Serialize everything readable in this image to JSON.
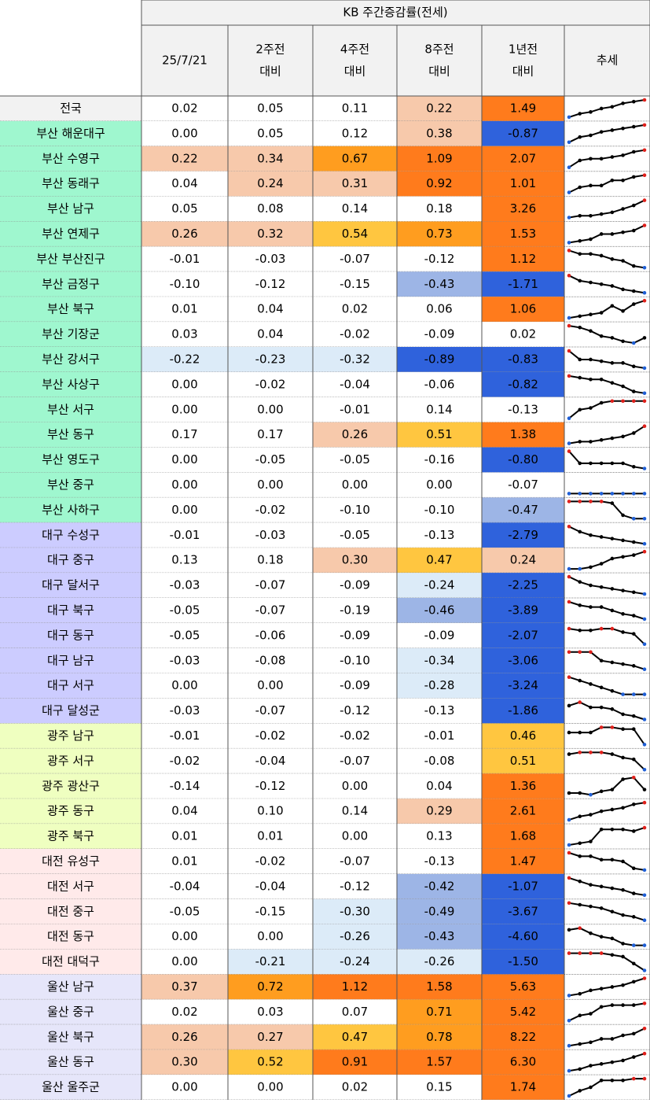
{
  "header": {
    "title": "KB 주간증감률(전세)",
    "columns": [
      [
        "25/7/21"
      ],
      [
        "2주전",
        "대비"
      ],
      [
        "4주전",
        "대비"
      ],
      [
        "8주전",
        "대비"
      ],
      [
        "1년전",
        "대비"
      ],
      [
        "추세"
      ]
    ]
  },
  "groups": [
    {
      "color": "#f2f2f2",
      "rows": [
        {
          "region": "전국",
          "values": [
            "0.02",
            "0.05",
            "0.11",
            "0.22",
            "1.49"
          ],
          "trend": [
            0,
            2,
            3,
            5,
            6,
            8,
            9,
            10
          ]
        }
      ]
    },
    {
      "color": "#9ff7cf",
      "rows": [
        {
          "region": "부산 해운대구",
          "values": [
            "0.00",
            "0.05",
            "0.12",
            "0.38",
            "-0.87"
          ],
          "trend": [
            0,
            3,
            4,
            6,
            7,
            8,
            9,
            10
          ]
        },
        {
          "region": "부산 수영구",
          "values": [
            "0.22",
            "0.34",
            "0.67",
            "1.09",
            "2.07"
          ],
          "trend": [
            0,
            4,
            5,
            5,
            6,
            7,
            9,
            10
          ]
        },
        {
          "region": "부산 동래구",
          "values": [
            "0.04",
            "0.24",
            "0.31",
            "0.92",
            "1.01"
          ],
          "trend": [
            0,
            3,
            4,
            4,
            7,
            7,
            9,
            10
          ]
        },
        {
          "region": "부산 남구",
          "values": [
            "0.05",
            "0.08",
            "0.14",
            "0.18",
            "3.26"
          ],
          "trend": [
            0,
            1,
            1,
            2,
            3,
            5,
            7,
            10
          ]
        },
        {
          "region": "부산 연제구",
          "values": [
            "0.26",
            "0.32",
            "0.54",
            "0.73",
            "1.53"
          ],
          "trend": [
            0,
            1,
            2,
            5,
            5,
            6,
            7,
            10
          ]
        },
        {
          "region": "부산 부산진구",
          "values": [
            "-0.01",
            "-0.03",
            "-0.07",
            "-0.12",
            "1.12"
          ],
          "trend": [
            10,
            8,
            8,
            7,
            5,
            4,
            1,
            0
          ]
        },
        {
          "region": "부산 금정구",
          "values": [
            "-0.10",
            "-0.12",
            "-0.15",
            "-0.43",
            "-1.71"
          ],
          "trend": [
            10,
            7,
            6,
            5,
            4,
            2,
            1,
            0
          ]
        },
        {
          "region": "부산 북구",
          "values": [
            "0.01",
            "0.04",
            "0.02",
            "0.06",
            "1.06"
          ],
          "trend": [
            0,
            1,
            2,
            3,
            7,
            4,
            8,
            10
          ]
        },
        {
          "region": "부산 기장군",
          "values": [
            "0.03",
            "0.04",
            "-0.02",
            "-0.09",
            "0.02"
          ],
          "trend": [
            10,
            9,
            7,
            4,
            3,
            1,
            0,
            3
          ]
        },
        {
          "region": "부산 강서구",
          "values": [
            "-0.22",
            "-0.23",
            "-0.32",
            "-0.89",
            "-0.83"
          ],
          "trend": [
            10,
            5,
            5,
            4,
            3,
            3,
            1,
            0
          ]
        },
        {
          "region": "부산 사상구",
          "values": [
            "0.00",
            "-0.02",
            "-0.04",
            "-0.06",
            "-0.82"
          ],
          "trend": [
            10,
            9,
            8,
            8,
            6,
            4,
            1,
            0
          ]
        },
        {
          "region": "부산 서구",
          "values": [
            "0.00",
            "0.00",
            "-0.01",
            "0.14",
            "-0.13"
          ],
          "trend": [
            0,
            5,
            6,
            9,
            10,
            10,
            10,
            10
          ]
        },
        {
          "region": "부산 동구",
          "values": [
            "0.17",
            "0.17",
            "0.26",
            "0.51",
            "1.38"
          ],
          "trend": [
            0,
            1,
            1,
            2,
            3,
            4,
            6,
            10
          ]
        },
        {
          "region": "부산 영도구",
          "values": [
            "0.00",
            "-0.05",
            "-0.05",
            "-0.16",
            "-0.80"
          ],
          "trend": [
            10,
            3,
            3,
            3,
            3,
            3,
            1,
            0
          ]
        },
        {
          "region": "부산 중구",
          "values": [
            "0.00",
            "0.00",
            "0.00",
            "0.00",
            "-0.07"
          ],
          "trend": [
            0,
            0,
            0,
            0,
            0,
            0,
            0,
            0
          ]
        },
        {
          "region": "부산 사하구",
          "values": [
            "0.00",
            "-0.02",
            "-0.10",
            "-0.10",
            "-0.47"
          ],
          "trend": [
            10,
            10,
            10,
            10,
            9,
            2,
            0,
            0
          ]
        }
      ]
    },
    {
      "color": "#ccccff",
      "rows": [
        {
          "region": "대구 수성구",
          "values": [
            "-0.01",
            "-0.03",
            "-0.05",
            "-0.13",
            "-2.79"
          ],
          "trend": [
            10,
            7,
            5,
            4,
            3,
            2,
            1,
            0
          ]
        },
        {
          "region": "대구 중구",
          "values": [
            "0.13",
            "0.18",
            "0.30",
            "0.47",
            "0.24"
          ],
          "trend": [
            0,
            0,
            1,
            3,
            6,
            7,
            8,
            10
          ]
        },
        {
          "region": "대구 달서구",
          "values": [
            "-0.03",
            "-0.07",
            "-0.09",
            "-0.24",
            "-2.25"
          ],
          "trend": [
            10,
            7,
            5,
            4,
            3,
            2,
            1,
            0
          ]
        },
        {
          "region": "대구 북구",
          "values": [
            "-0.05",
            "-0.07",
            "-0.19",
            "-0.46",
            "-3.89"
          ],
          "trend": [
            10,
            8,
            7,
            7,
            5,
            3,
            2,
            0
          ]
        },
        {
          "region": "대구 동구",
          "values": [
            "-0.05",
            "-0.06",
            "-0.09",
            "-0.09",
            "-2.07"
          ],
          "trend": [
            9,
            8,
            8,
            9,
            9,
            7,
            6,
            0
          ]
        },
        {
          "region": "대구 남구",
          "values": [
            "-0.03",
            "-0.08",
            "-0.10",
            "-0.34",
            "-3.06"
          ],
          "trend": [
            10,
            10,
            10,
            5,
            4,
            3,
            2,
            0
          ]
        },
        {
          "region": "대구 서구",
          "values": [
            "0.00",
            "0.00",
            "-0.09",
            "-0.28",
            "-3.24"
          ],
          "trend": [
            10,
            8,
            6,
            4,
            2,
            0,
            0,
            0
          ]
        },
        {
          "region": "대구 달성군",
          "values": [
            "-0.03",
            "-0.07",
            "-0.12",
            "-0.13",
            "-1.86"
          ],
          "trend": [
            8,
            10,
            7,
            7,
            6,
            3,
            2,
            0
          ]
        }
      ]
    },
    {
      "color": "#efffc0",
      "rows": [
        {
          "region": "광주 남구",
          "values": [
            "-0.01",
            "-0.02",
            "-0.02",
            "-0.01",
            "0.46"
          ],
          "trend": [
            7,
            7,
            7,
            10,
            10,
            9,
            9,
            0
          ]
        },
        {
          "region": "광주 서구",
          "values": [
            "-0.02",
            "-0.04",
            "-0.07",
            "-0.08",
            "0.51"
          ],
          "trend": [
            9,
            10,
            10,
            10,
            9,
            7,
            6,
            0
          ]
        },
        {
          "region": "광주 광산구",
          "values": [
            "-0.14",
            "-0.12",
            "0.00",
            "0.04",
            "1.36"
          ],
          "trend": [
            1,
            1,
            0,
            2,
            3,
            9,
            10,
            3
          ]
        },
        {
          "region": "광주 동구",
          "values": [
            "0.04",
            "0.10",
            "0.14",
            "0.29",
            "2.61"
          ],
          "trend": [
            0,
            2,
            3,
            5,
            6,
            7,
            9,
            10
          ]
        },
        {
          "region": "광주 북구",
          "values": [
            "0.01",
            "0.01",
            "0.00",
            "0.13",
            "1.68"
          ],
          "trend": [
            0,
            1,
            2,
            9,
            9,
            9,
            8,
            10
          ]
        }
      ]
    },
    {
      "color": "#ffeaea",
      "rows": [
        {
          "region": "대전 유성구",
          "values": [
            "0.01",
            "-0.02",
            "-0.07",
            "-0.13",
            "1.47"
          ],
          "trend": [
            10,
            8,
            8,
            6,
            6,
            5,
            1,
            0
          ]
        },
        {
          "region": "대전 서구",
          "values": [
            "-0.04",
            "-0.04",
            "-0.12",
            "-0.42",
            "-1.07"
          ],
          "trend": [
            10,
            8,
            6,
            5,
            4,
            3,
            1,
            0
          ]
        },
        {
          "region": "대전 중구",
          "values": [
            "-0.05",
            "-0.15",
            "-0.30",
            "-0.49",
            "-3.67"
          ],
          "trend": [
            10,
            9,
            8,
            7,
            5,
            3,
            2,
            0
          ]
        },
        {
          "region": "대전 동구",
          "values": [
            "0.00",
            "0.00",
            "-0.26",
            "-0.43",
            "-4.60"
          ],
          "trend": [
            9,
            10,
            7,
            5,
            4,
            1,
            0,
            0
          ]
        },
        {
          "region": "대전 대덕구",
          "values": [
            "0.00",
            "-0.21",
            "-0.24",
            "-0.26",
            "-1.50"
          ],
          "trend": [
            10,
            10,
            10,
            10,
            9,
            8,
            4,
            0
          ]
        }
      ]
    },
    {
      "color": "#e6e6fa",
      "rows": [
        {
          "region": "울산 남구",
          "values": [
            "0.37",
            "0.72",
            "1.12",
            "1.58",
            "5.63"
          ],
          "trend": [
            0,
            1,
            3,
            4,
            5,
            6,
            8,
            10
          ]
        },
        {
          "region": "울산 중구",
          "values": [
            "0.02",
            "0.03",
            "0.07",
            "0.71",
            "5.42"
          ],
          "trend": [
            0,
            3,
            4,
            8,
            9,
            9,
            9,
            10
          ]
        },
        {
          "region": "울산 북구",
          "values": [
            "0.26",
            "0.27",
            "0.47",
            "0.78",
            "8.22"
          ],
          "trend": [
            0,
            1,
            2,
            4,
            4,
            6,
            7,
            10
          ]
        },
        {
          "region": "울산 동구",
          "values": [
            "0.30",
            "0.52",
            "0.91",
            "1.57",
            "6.30"
          ],
          "trend": [
            0,
            1,
            3,
            4,
            5,
            6,
            8,
            10
          ]
        },
        {
          "region": "울산 울주군",
          "values": [
            "0.00",
            "0.00",
            "0.02",
            "0.15",
            "1.74"
          ],
          "trend": [
            0,
            3,
            5,
            9,
            9,
            9,
            10,
            10
          ]
        }
      ]
    }
  ]
}
